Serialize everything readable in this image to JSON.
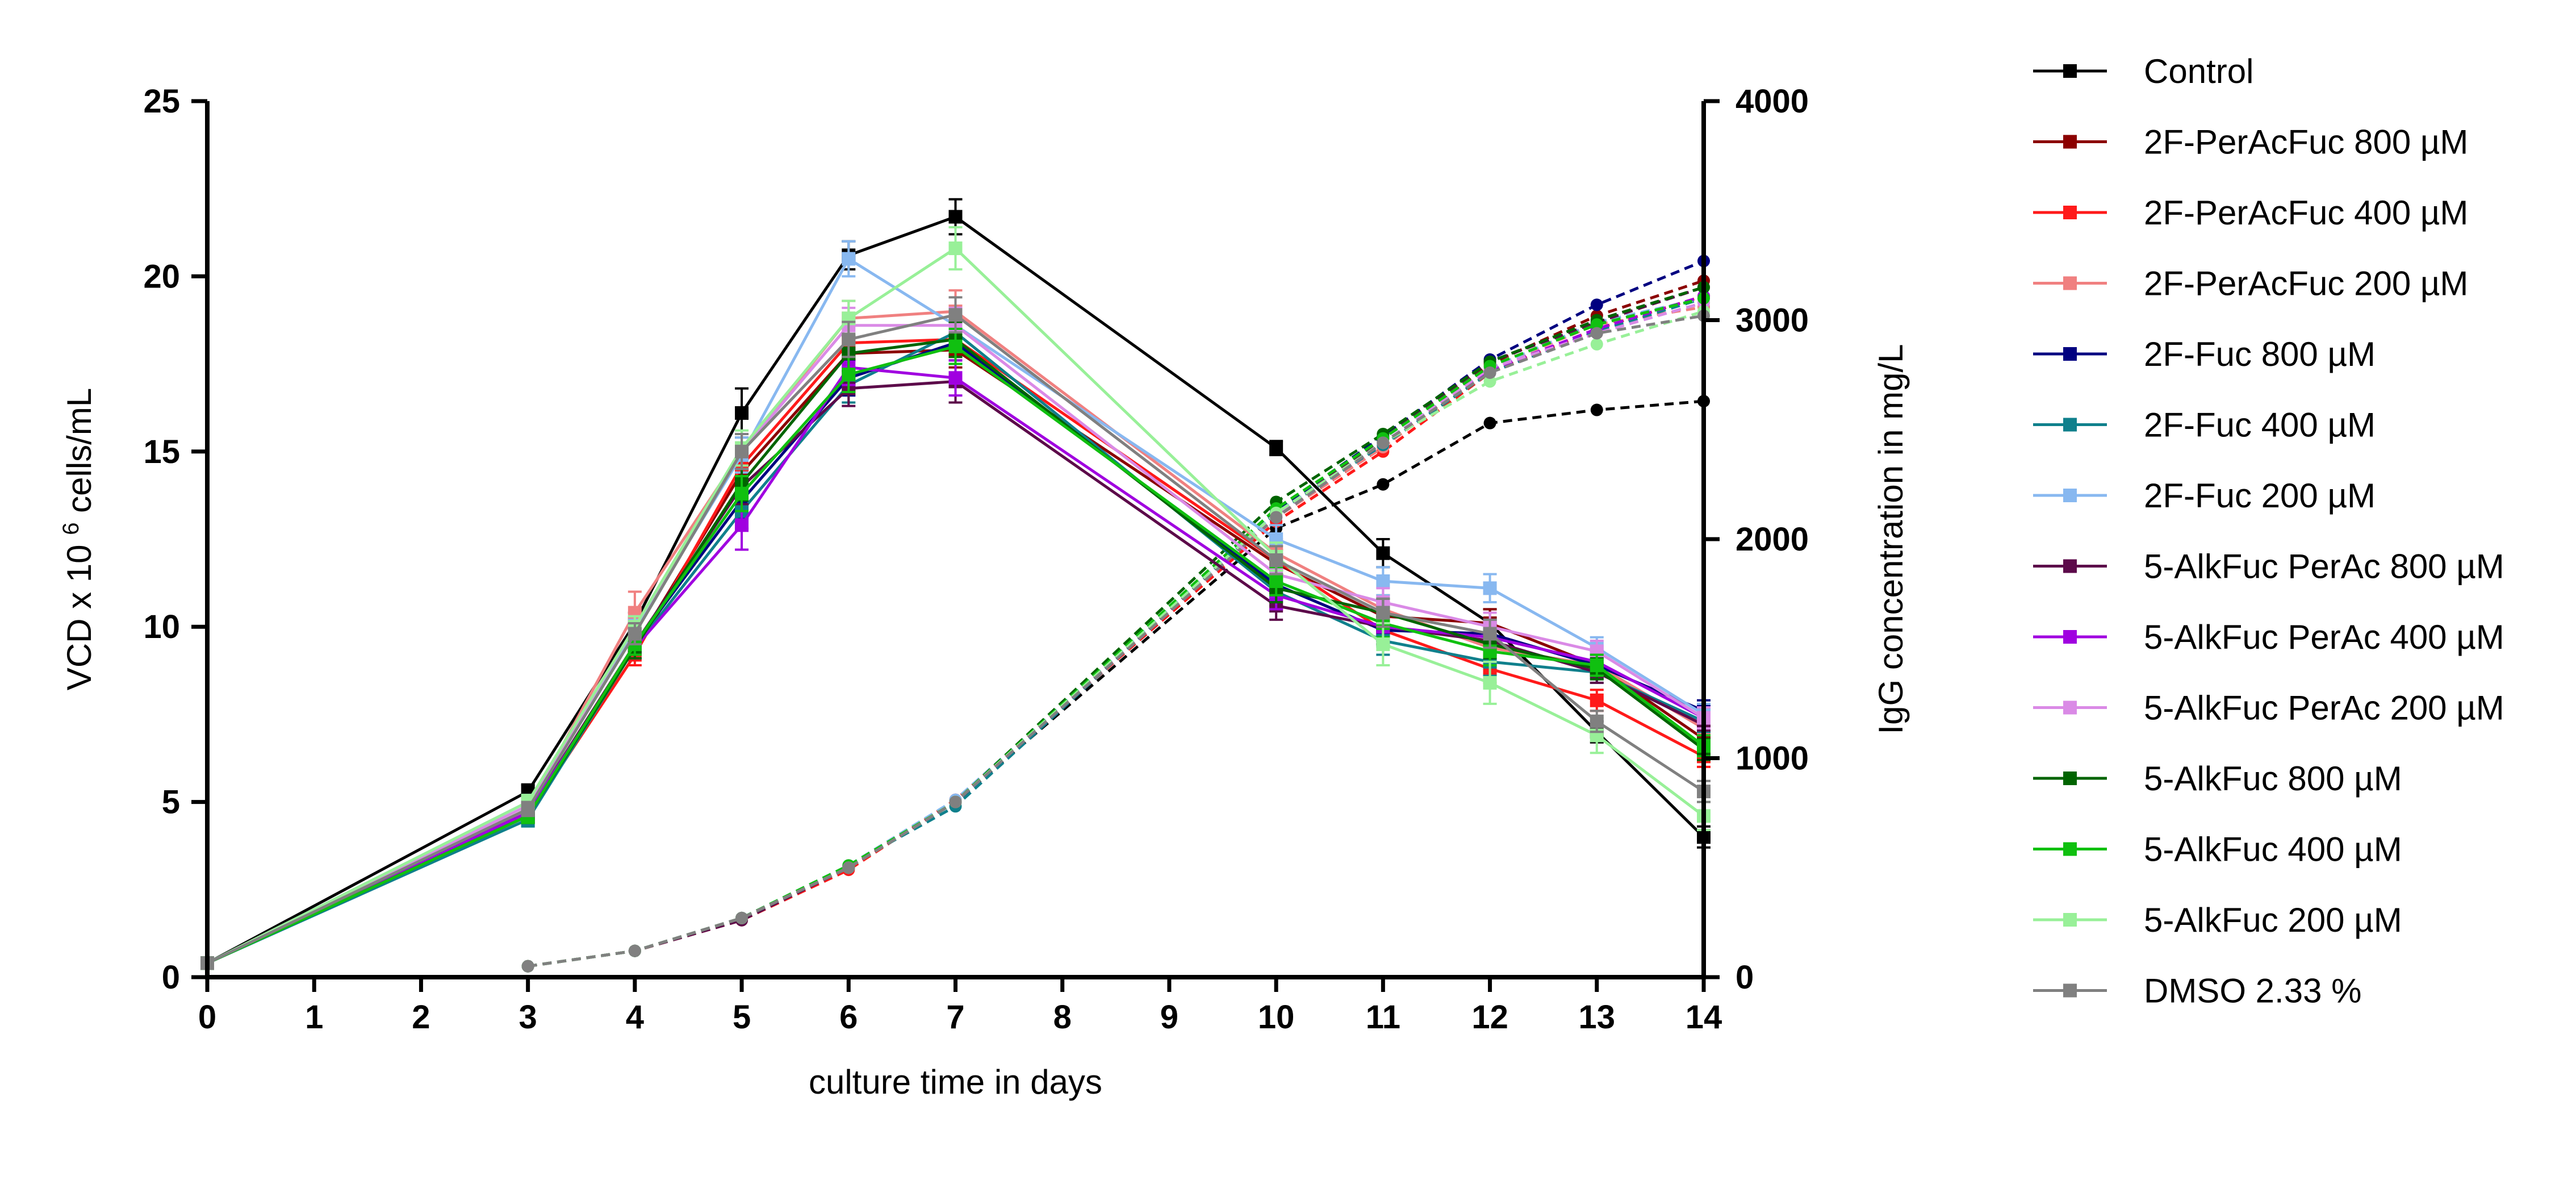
{
  "chart_data": {
    "type": "line",
    "title": "",
    "xlabel": "culture time in days",
    "ylabel_left": "VCD x 10^6 cells/mL",
    "ylabel_left_parts": {
      "prefix": "VCD x 10",
      "sup": "6",
      "suffix": " cells/mL"
    },
    "ylabel_right": "IgG concentration in mg/L",
    "xlim": [
      0,
      14
    ],
    "ylim_left": [
      0,
      25
    ],
    "ylim_right": [
      0,
      4000
    ],
    "x_ticks": [
      "0",
      "1",
      "2",
      "3",
      "4",
      "5",
      "6",
      "7",
      "8",
      "9",
      "10",
      "11",
      "12",
      "13",
      "14"
    ],
    "y_left_ticks": [
      "0",
      "5",
      "10",
      "15",
      "20",
      "25"
    ],
    "y_right_ticks": [
      "0",
      "1000",
      "2000",
      "3000",
      "4000"
    ],
    "grid": false,
    "legend_position": "right",
    "vcd_days": [
      0,
      3,
      4,
      5,
      6,
      7,
      10,
      11,
      12,
      13,
      14
    ],
    "igg_days": [
      3,
      4,
      5,
      6,
      7,
      10,
      11,
      12,
      13,
      14
    ],
    "series": [
      {
        "name": "Control",
        "color": "#000000",
        "vcd": [
          0.4,
          5.3,
          10.1,
          16.1,
          20.6,
          21.7,
          15.1,
          12.1,
          10.1,
          7.0,
          4.0
        ],
        "vcd_err": [
          0,
          0.2,
          0.3,
          0.7,
          0.4,
          0.5,
          0.2,
          0.4,
          0.4,
          0.3,
          0.3
        ],
        "igg": [
          50,
          120,
          270,
          500,
          800,
          2050,
          2250,
          2530,
          2590,
          2630
        ]
      },
      {
        "name": "2F-PerAcFuc 800 µM",
        "color": "#8B0000",
        "vcd": [
          0.4,
          4.7,
          9.4,
          14.4,
          17.8,
          17.9,
          11.8,
          10.3,
          10.1,
          8.9,
          6.8
        ],
        "vcd_err": [
          0,
          0.2,
          0.3,
          0.5,
          0.5,
          0.5,
          0.4,
          0.4,
          0.4,
          0.3,
          0.3
        ],
        "igg": [
          50,
          120,
          270,
          500,
          800,
          2100,
          2420,
          2800,
          3020,
          3180
        ]
      },
      {
        "name": "2F-PerAcFuc 400 µM",
        "color": "#FF1A1A",
        "vcd": [
          0.4,
          4.6,
          9.2,
          14.6,
          18.1,
          18.2,
          11.9,
          9.9,
          8.8,
          7.9,
          6.3
        ],
        "vcd_err": [
          0,
          0.2,
          0.3,
          0.5,
          0.5,
          0.5,
          0.4,
          0.4,
          0.4,
          0.3,
          0.3
        ],
        "igg": [
          50,
          120,
          260,
          490,
          810,
          2080,
          2400,
          2760,
          2960,
          3110
        ]
      },
      {
        "name": "2F-PerAcFuc 200 µM",
        "color": "#F08080",
        "vcd": [
          0.4,
          4.8,
          10.4,
          15.0,
          18.8,
          19.0,
          12.1,
          10.5,
          9.4,
          8.9,
          7.1
        ],
        "vcd_err": [
          0,
          0.2,
          0.6,
          0.5,
          0.5,
          0.6,
          0.4,
          0.4,
          0.4,
          0.3,
          0.3
        ],
        "igg": [
          50,
          120,
          270,
          500,
          810,
          2100,
          2420,
          2780,
          2980,
          3060
        ]
      },
      {
        "name": "2F-Fuc 800 µM",
        "color": "#000080",
        "vcd": [
          0.4,
          4.6,
          9.5,
          13.6,
          17.1,
          18.1,
          11.2,
          9.9,
          9.8,
          8.9,
          7.6
        ],
        "vcd_err": [
          0,
          0.2,
          0.3,
          0.5,
          0.5,
          0.5,
          0.4,
          0.4,
          0.4,
          0.3,
          0.3
        ],
        "igg": [
          50,
          120,
          270,
          500,
          800,
          2130,
          2470,
          2820,
          3070,
          3270
        ]
      },
      {
        "name": "2F-Fuc 400 µM",
        "color": "#10808C",
        "vcd": [
          0.4,
          4.5,
          9.4,
          13.3,
          16.9,
          18.4,
          11.0,
          9.6,
          9.0,
          8.7,
          7.3
        ],
        "vcd_err": [
          0,
          0.2,
          0.3,
          0.5,
          0.5,
          0.5,
          0.4,
          0.4,
          0.4,
          0.3,
          0.3
        ],
        "igg": [
          50,
          120,
          270,
          510,
          780,
          2120,
          2430,
          2760,
          2950,
          3100
        ]
      },
      {
        "name": "2F-Fuc 200 µM",
        "color": "#88B8F0",
        "vcd": [
          0.4,
          5.0,
          9.9,
          14.9,
          20.5,
          18.6,
          12.5,
          11.3,
          11.1,
          9.4,
          7.5
        ],
        "vcd_err": [
          0,
          0.2,
          0.3,
          0.5,
          0.5,
          0.5,
          0.4,
          0.4,
          0.4,
          0.3,
          0.3
        ],
        "igg": [
          50,
          120,
          270,
          510,
          810,
          2120,
          2440,
          2780,
          2990,
          3100
        ]
      },
      {
        "name": "5-AlkFuc PerAc 800 µM",
        "color": "#5C0A4A",
        "vcd": [
          0.4,
          4.7,
          9.5,
          14.0,
          16.8,
          17.0,
          10.6,
          10.0,
          9.6,
          8.7,
          7.2
        ],
        "vcd_err": [
          0,
          0.2,
          0.3,
          0.5,
          0.5,
          0.6,
          0.4,
          0.4,
          0.4,
          0.3,
          0.3
        ],
        "igg": [
          50,
          120,
          260,
          500,
          800,
          2110,
          2460,
          2810,
          2990,
          3150
        ]
      },
      {
        "name": "5-AlkFuc PerAc 400 µM",
        "color": "#A000E0",
        "vcd": [
          0.4,
          4.7,
          9.4,
          12.9,
          17.4,
          17.1,
          10.9,
          10.0,
          9.7,
          9.0,
          7.4
        ],
        "vcd_err": [
          0,
          0.2,
          0.3,
          0.7,
          0.5,
          0.5,
          0.4,
          0.4,
          0.4,
          0.3,
          0.3
        ],
        "igg": [
          50,
          120,
          270,
          500,
          800,
          2100,
          2440,
          2770,
          2960,
          3110
        ]
      },
      {
        "name": "5-AlkFuc PerAc 200 µM",
        "color": "#DA8AE6",
        "vcd": [
          0.4,
          4.9,
          10.0,
          15.0,
          18.6,
          18.6,
          11.5,
          10.7,
          10.0,
          9.3,
          7.4
        ],
        "vcd_err": [
          0,
          0.2,
          0.3,
          0.5,
          0.5,
          0.5,
          0.4,
          0.4,
          0.4,
          0.3,
          0.3
        ],
        "igg": [
          50,
          120,
          270,
          500,
          800,
          2110,
          2440,
          2780,
          2940,
          3080
        ]
      },
      {
        "name": "5-AlkFuc 800 µM",
        "color": "#006400",
        "vcd": [
          0.4,
          4.6,
          9.4,
          14.1,
          17.8,
          18.2,
          11.1,
          10.4,
          9.5,
          8.8,
          6.5
        ],
        "vcd_err": [
          0,
          0.2,
          0.3,
          0.5,
          0.5,
          0.5,
          0.4,
          0.4,
          0.4,
          0.3,
          0.3
        ],
        "igg": [
          50,
          120,
          270,
          500,
          800,
          2170,
          2480,
          2810,
          3000,
          3150
        ]
      },
      {
        "name": "5-AlkFuc 400 µM",
        "color": "#10C010",
        "vcd": [
          0.4,
          4.6,
          9.5,
          13.8,
          17.2,
          18.0,
          11.3,
          10.1,
          9.3,
          8.9,
          6.6
        ],
        "vcd_err": [
          0,
          0.2,
          0.3,
          0.5,
          0.5,
          0.5,
          0.4,
          0.4,
          0.4,
          0.3,
          0.3
        ],
        "igg": [
          50,
          120,
          270,
          510,
          800,
          2140,
          2460,
          2790,
          2980,
          3100
        ]
      },
      {
        "name": "5-AlkFuc 200 µM",
        "color": "#98F098",
        "vcd": [
          0.4,
          5.0,
          10.0,
          15.1,
          18.8,
          20.8,
          12.0,
          9.5,
          8.4,
          6.9,
          4.6
        ],
        "vcd_err": [
          0,
          0.2,
          0.3,
          0.5,
          0.5,
          0.6,
          0.4,
          0.6,
          0.6,
          0.5,
          0.4
        ],
        "igg": [
          50,
          120,
          270,
          500,
          800,
          2120,
          2440,
          2720,
          2890,
          3040
        ]
      },
      {
        "name": "DMSO 2.33 %",
        "color": "#808080",
        "vcd": [
          0.4,
          4.8,
          9.8,
          15.0,
          18.2,
          18.9,
          11.9,
          10.4,
          9.8,
          7.3,
          5.3
        ],
        "vcd_err": [
          0,
          0.2,
          0.3,
          0.5,
          0.5,
          0.5,
          0.4,
          0.4,
          0.4,
          0.3,
          0.3
        ],
        "igg": [
          50,
          120,
          270,
          500,
          800,
          2100,
          2440,
          2760,
          2940,
          3020
        ]
      }
    ]
  }
}
